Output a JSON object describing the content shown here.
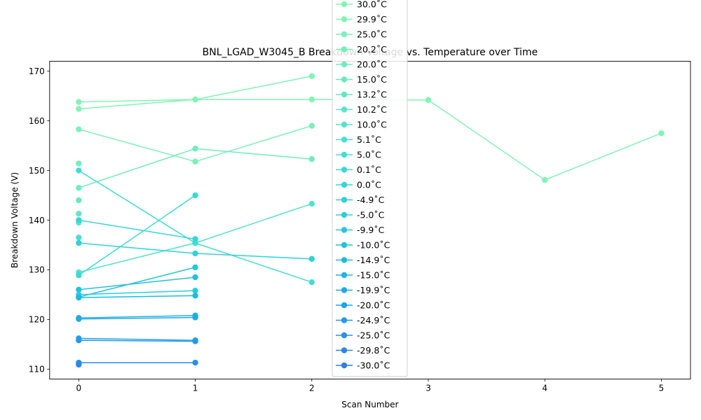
{
  "chart_data": {
    "type": "line",
    "title": "BNL_LGAD_W3045_B Breakdown Voltage vs. Temperature over Time",
    "xlabel": "Scan Number",
    "ylabel": "Breakdown Voltage (V)",
    "xlim": [
      -0.25,
      5.25
    ],
    "ylim": [
      108,
      172
    ],
    "xticks": [
      0,
      1,
      2,
      3,
      4,
      5
    ],
    "yticks": [
      110,
      120,
      130,
      140,
      150,
      160,
      170
    ],
    "grid": false,
    "legend_position": "top-center",
    "series": [
      {
        "name": "30.0$^\\circ$C",
        "color": "#82f5b2",
        "points": [
          [
            0,
            162.4
          ],
          [
            1,
            164.3
          ],
          [
            2,
            169.0
          ]
        ]
      },
      {
        "name": "29.9$^\\circ$C",
        "color": "#80f4b4",
        "points": [
          [
            0,
            163.8
          ],
          [
            1,
            164.3
          ],
          [
            2,
            164.3
          ],
          [
            3,
            164.2
          ],
          [
            4,
            148.1
          ],
          [
            5,
            157.5
          ]
        ]
      },
      {
        "name": "25.0$^\\circ$C",
        "color": "#79f1b8",
        "points": [
          [
            0,
            158.3
          ],
          [
            1,
            151.8
          ],
          [
            2,
            159.0
          ]
        ]
      },
      {
        "name": "20.2$^\\circ$C",
        "color": "#72efbc",
        "points": [
          [
            0,
            151.4
          ]
        ]
      },
      {
        "name": "20.0$^\\circ$C",
        "color": "#6eedbd",
        "points": [
          [
            0,
            146.5
          ],
          [
            1,
            154.4
          ],
          [
            2,
            152.3
          ]
        ]
      },
      {
        "name": "15.0$^\\circ$C",
        "color": "#66eac1",
        "points": [
          [
            0,
            144.0
          ]
        ]
      },
      {
        "name": "13.2$^\\circ$C",
        "color": "#60e8c4",
        "points": [
          [
            0,
            141.3
          ]
        ]
      },
      {
        "name": "10.2$^\\circ$C",
        "color": "#58e5c8",
        "points": [
          [
            0,
            139.5
          ]
        ]
      },
      {
        "name": "10.0$^\\circ$C",
        "color": "#52e3ca",
        "points": [
          [
            0,
            129.5
          ],
          [
            1,
            135.4
          ],
          [
            2,
            143.3
          ]
        ]
      },
      {
        "name": "5.1$^\\circ$C",
        "color": "#4ae0ce",
        "points": [
          [
            0,
            136.5
          ]
        ]
      },
      {
        "name": "5.0$^\\circ$C",
        "color": "#43ddd1",
        "points": [
          [
            0,
            150.0
          ],
          [
            1,
            135.4
          ],
          [
            2,
            127.5
          ]
        ]
      },
      {
        "name": "0.1$^\\circ$C",
        "color": "#3cd9d4",
        "points": [
          [
            0,
            128.9
          ],
          [
            1,
            145.0
          ]
        ]
      },
      {
        "name": "0.0$^\\circ$C",
        "color": "#35d6d6",
        "points": [
          [
            0,
            140.0
          ],
          [
            1,
            136.2
          ]
        ]
      },
      {
        "name": "-4.9$^\\circ$C",
        "color": "#2fd2d9",
        "points": [
          [
            0,
            135.4
          ],
          [
            1,
            133.3
          ],
          [
            2,
            132.2
          ]
        ]
      },
      {
        "name": "-5.0$^\\circ$C",
        "color": "#2acddb",
        "points": [
          [
            0,
            125.0
          ],
          [
            1,
            125.8
          ]
        ]
      },
      {
        "name": "-9.9$^\\circ$C",
        "color": "#25c7dd",
        "points": [
          [
            0,
            124.5
          ],
          [
            1,
            130.5
          ]
        ]
      },
      {
        "name": "-10.0$^\\circ$C",
        "color": "#21c1df",
        "points": [
          [
            0,
            126.0
          ],
          [
            1,
            128.5
          ]
        ]
      },
      {
        "name": "-14.9$^\\circ$C",
        "color": "#1ebae1",
        "points": [
          [
            0,
            124.4
          ],
          [
            1,
            124.8
          ]
        ]
      },
      {
        "name": "-15.0$^\\circ$C",
        "color": "#1db3e3",
        "points": [
          [
            0,
            120.3
          ],
          [
            1,
            120.8
          ]
        ]
      },
      {
        "name": "-19.9$^\\circ$C",
        "color": "#1eabe5",
        "points": [
          [
            0,
            120.1
          ],
          [
            1,
            120.4
          ]
        ]
      },
      {
        "name": "-20.0$^\\circ$C",
        "color": "#20a2e7",
        "points": [
          [
            0,
            116.2
          ],
          [
            1,
            115.8
          ]
        ]
      },
      {
        "name": "-24.9$^\\circ$C",
        "color": "#2399e8",
        "points": [
          [
            0,
            115.8
          ],
          [
            1,
            115.6
          ]
        ]
      },
      {
        "name": "-25.0$^\\circ$C",
        "color": "#2690ea",
        "points": [
          [
            0,
            111.3
          ],
          [
            1,
            111.3
          ]
        ]
      },
      {
        "name": "-29.8$^\\circ$C",
        "color": "#2a86eb",
        "points": [
          [
            0,
            110.9
          ]
        ]
      },
      {
        "name": "-30.0$^\\circ$C",
        "color": "#2e7dec",
        "points": []
      }
    ]
  }
}
